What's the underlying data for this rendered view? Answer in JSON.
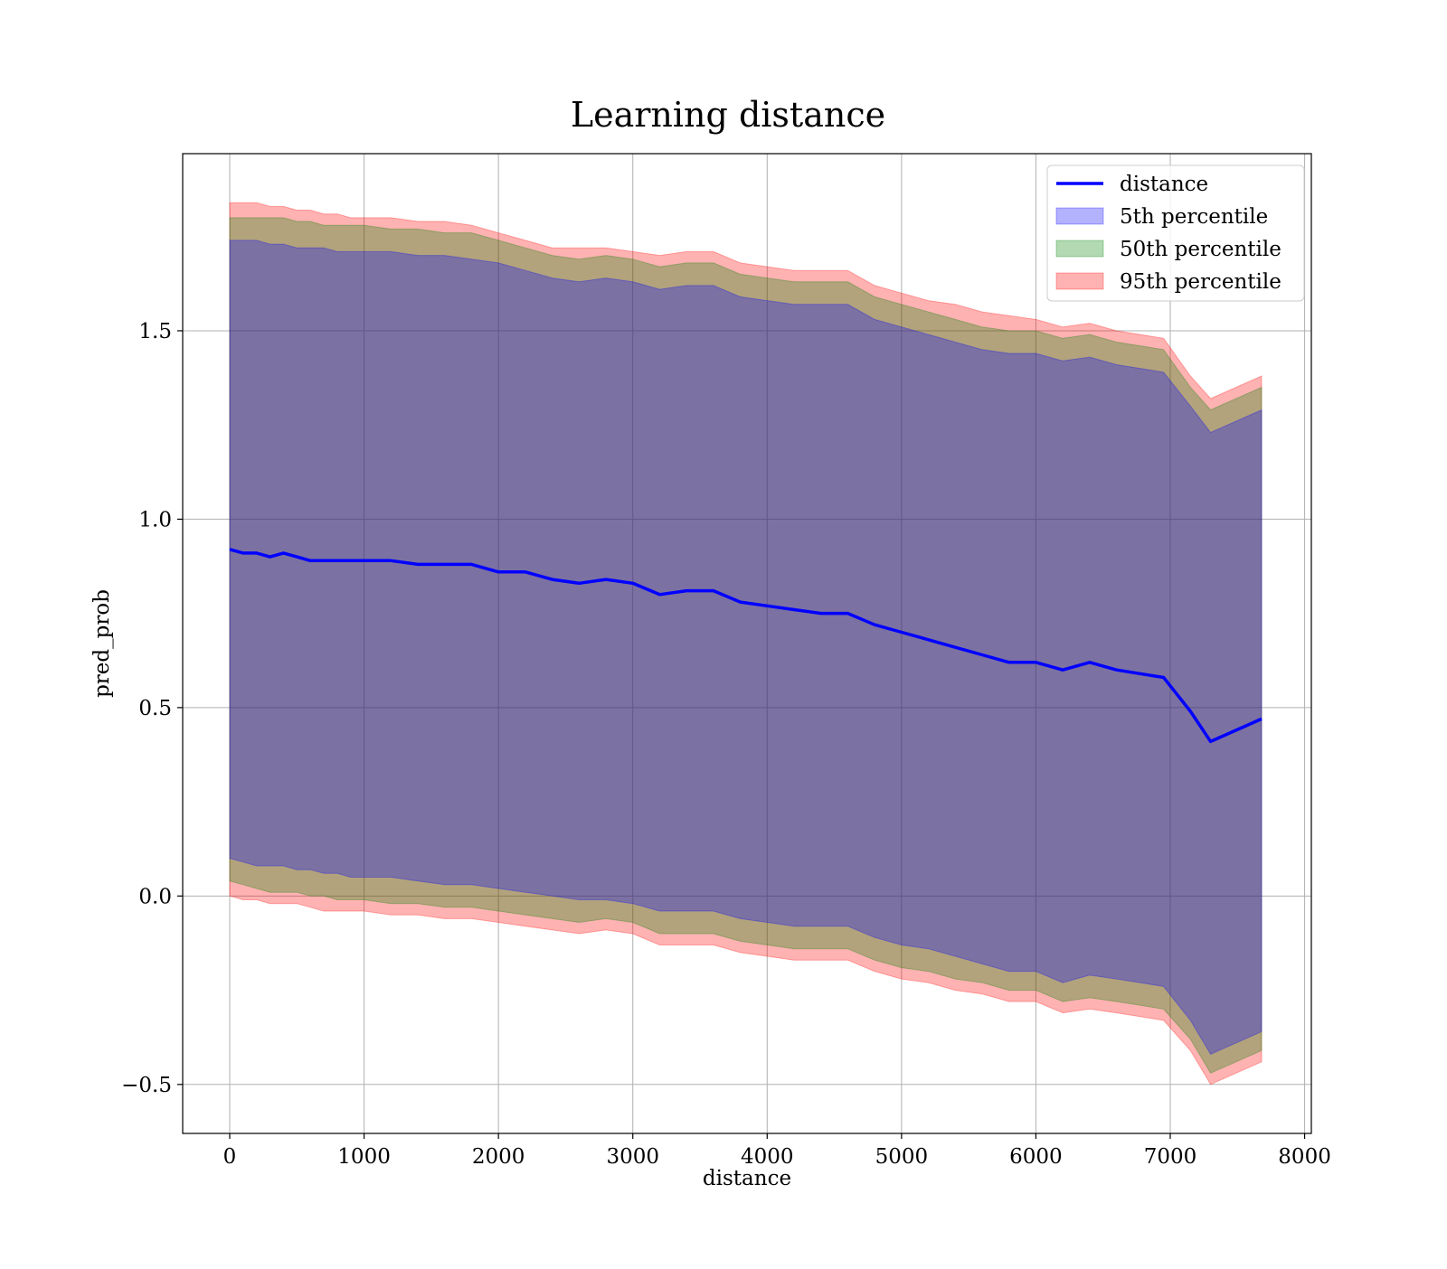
{
  "chart_data": {
    "type": "line",
    "title": "Learning distance",
    "xlabel": "distance",
    "ylabel": "pred_prob",
    "xlim": [
      -350,
      8050
    ],
    "ylim": [
      -0.63,
      1.97
    ],
    "xticks": [
      0,
      1000,
      2000,
      3000,
      4000,
      5000,
      6000,
      7000,
      8000
    ],
    "xtick_labels": [
      "0",
      "1000",
      "2000",
      "3000",
      "4000",
      "5000",
      "6000",
      "7000",
      "8000"
    ],
    "yticks": [
      -0.5,
      0.0,
      0.5,
      1.0,
      1.5
    ],
    "ytick_labels": [
      "−0.5",
      "0.0",
      "0.5",
      "1.0",
      "1.5"
    ],
    "grid": true,
    "legend_position": "top-right",
    "line": {
      "name": "distance",
      "color": "#0000ff",
      "x": [
        0,
        100,
        200,
        300,
        400,
        500,
        600,
        700,
        800,
        900,
        1000,
        1200,
        1400,
        1600,
        1800,
        2000,
        2200,
        2400,
        2600,
        2800,
        3000,
        3200,
        3400,
        3600,
        3800,
        4000,
        4200,
        4400,
        4600,
        4800,
        5000,
        5200,
        5400,
        5600,
        5800,
        6000,
        6200,
        6400,
        6600,
        6950,
        7150,
        7300,
        7680
      ],
      "y": [
        0.92,
        0.91,
        0.91,
        0.9,
        0.91,
        0.9,
        0.89,
        0.89,
        0.89,
        0.89,
        0.89,
        0.89,
        0.88,
        0.88,
        0.88,
        0.86,
        0.86,
        0.84,
        0.83,
        0.84,
        0.83,
        0.8,
        0.81,
        0.81,
        0.78,
        0.77,
        0.76,
        0.75,
        0.75,
        0.72,
        0.7,
        0.68,
        0.66,
        0.64,
        0.62,
        0.62,
        0.6,
        0.62,
        0.6,
        0.58,
        0.49,
        0.41,
        0.47
      ]
    },
    "bands": [
      {
        "name": "95th percentile",
        "color": "#ff0000",
        "upper": [
          1.84,
          1.84,
          1.84,
          1.83,
          1.83,
          1.82,
          1.82,
          1.81,
          1.81,
          1.8,
          1.8,
          1.8,
          1.79,
          1.79,
          1.78,
          1.76,
          1.74,
          1.72,
          1.72,
          1.72,
          1.71,
          1.7,
          1.71,
          1.71,
          1.68,
          1.67,
          1.66,
          1.66,
          1.66,
          1.62,
          1.6,
          1.58,
          1.57,
          1.55,
          1.54,
          1.53,
          1.51,
          1.52,
          1.5,
          1.48,
          1.38,
          1.32,
          1.38
        ],
        "lower": [
          0.0,
          -0.01,
          -0.01,
          -0.02,
          -0.02,
          -0.02,
          -0.03,
          -0.04,
          -0.04,
          -0.04,
          -0.04,
          -0.05,
          -0.05,
          -0.06,
          -0.06,
          -0.07,
          -0.08,
          -0.09,
          -0.1,
          -0.09,
          -0.1,
          -0.13,
          -0.13,
          -0.13,
          -0.15,
          -0.16,
          -0.17,
          -0.17,
          -0.17,
          -0.2,
          -0.22,
          -0.23,
          -0.25,
          -0.26,
          -0.28,
          -0.28,
          -0.31,
          -0.3,
          -0.31,
          -0.33,
          -0.41,
          -0.5,
          -0.44
        ]
      },
      {
        "name": "50th percentile",
        "color": "#008000",
        "upper": [
          1.8,
          1.8,
          1.8,
          1.8,
          1.8,
          1.79,
          1.79,
          1.78,
          1.78,
          1.78,
          1.78,
          1.77,
          1.77,
          1.76,
          1.76,
          1.74,
          1.72,
          1.7,
          1.69,
          1.7,
          1.69,
          1.67,
          1.68,
          1.68,
          1.65,
          1.64,
          1.63,
          1.63,
          1.63,
          1.59,
          1.57,
          1.55,
          1.53,
          1.51,
          1.5,
          1.5,
          1.48,
          1.49,
          1.47,
          1.45,
          1.35,
          1.29,
          1.35
        ],
        "lower": [
          0.04,
          0.03,
          0.02,
          0.01,
          0.01,
          0.01,
          0.0,
          0.0,
          -0.01,
          -0.01,
          -0.01,
          -0.02,
          -0.02,
          -0.03,
          -0.03,
          -0.04,
          -0.05,
          -0.06,
          -0.07,
          -0.06,
          -0.07,
          -0.1,
          -0.1,
          -0.1,
          -0.12,
          -0.13,
          -0.14,
          -0.14,
          -0.14,
          -0.17,
          -0.19,
          -0.2,
          -0.22,
          -0.23,
          -0.25,
          -0.25,
          -0.28,
          -0.27,
          -0.28,
          -0.3,
          -0.38,
          -0.47,
          -0.41
        ]
      },
      {
        "name": "5th percentile",
        "color": "#0000ff",
        "upper": [
          1.74,
          1.74,
          1.74,
          1.73,
          1.73,
          1.72,
          1.72,
          1.72,
          1.71,
          1.71,
          1.71,
          1.71,
          1.7,
          1.7,
          1.69,
          1.68,
          1.66,
          1.64,
          1.63,
          1.64,
          1.63,
          1.61,
          1.62,
          1.62,
          1.59,
          1.58,
          1.57,
          1.57,
          1.57,
          1.53,
          1.51,
          1.49,
          1.47,
          1.45,
          1.44,
          1.44,
          1.42,
          1.43,
          1.41,
          1.39,
          1.3,
          1.23,
          1.29
        ],
        "lower": [
          0.1,
          0.09,
          0.08,
          0.08,
          0.08,
          0.07,
          0.07,
          0.06,
          0.06,
          0.05,
          0.05,
          0.05,
          0.04,
          0.03,
          0.03,
          0.02,
          0.01,
          0.0,
          -0.01,
          -0.01,
          -0.02,
          -0.04,
          -0.04,
          -0.04,
          -0.06,
          -0.07,
          -0.08,
          -0.08,
          -0.08,
          -0.11,
          -0.13,
          -0.14,
          -0.16,
          -0.18,
          -0.2,
          -0.2,
          -0.23,
          -0.21,
          -0.22,
          -0.24,
          -0.33,
          -0.42,
          -0.36
        ]
      }
    ],
    "legend": [
      {
        "label": "distance",
        "kind": "line",
        "color": "#0000ff"
      },
      {
        "label": "5th percentile",
        "kind": "patch",
        "color": "#0000ff"
      },
      {
        "label": "50th percentile",
        "kind": "patch",
        "color": "#008000"
      },
      {
        "label": "95th percentile",
        "kind": "patch",
        "color": "#ff0000"
      }
    ]
  }
}
